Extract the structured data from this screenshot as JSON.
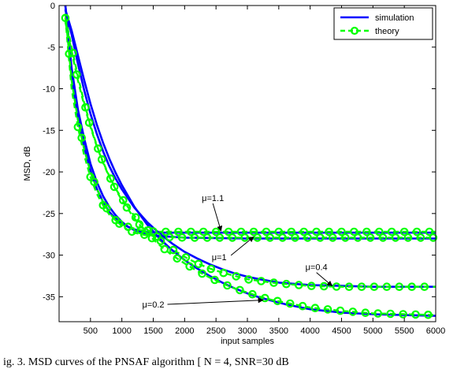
{
  "chart_data": {
    "type": "line",
    "xlabel": "input samples",
    "ylabel": "MSD, dB",
    "xlim": [
      0,
      6000
    ],
    "ylim": [
      -38,
      0
    ],
    "xticks": [
      500,
      1000,
      1500,
      2000,
      2500,
      3000,
      3500,
      4000,
      4500,
      5000,
      5500,
      6000
    ],
    "yticks": [
      0,
      -5,
      -10,
      -15,
      -20,
      -25,
      -30,
      -35
    ],
    "grid": false,
    "legend_position": "top-right",
    "legend": [
      {
        "label": "simulation",
        "color": "#0000ff",
        "style": "solid"
      },
      {
        "label": "theory",
        "color": "#00ff00",
        "style": "dashed",
        "marker": "circle"
      }
    ],
    "series": [
      {
        "mu": "1.1",
        "simulation": {
          "x": [
            100,
            200,
            300,
            400,
            500,
            600,
            700,
            800,
            900,
            1000,
            1100,
            1200,
            1300,
            1400,
            1600,
            2000,
            3000,
            4000,
            5000,
            6000
          ],
          "y": [
            0,
            -8.5,
            -13.5,
            -17,
            -19.8,
            -22,
            -23.6,
            -24.8,
            -25.6,
            -26.2,
            -26.6,
            -26.9,
            -27.1,
            -27.2,
            -27.3,
            -27.3,
            -27.3,
            -27.3,
            -27.3,
            -27.3
          ]
        },
        "theory": {
          "x": [
            100,
            200,
            300,
            400,
            500,
            600,
            700,
            800,
            900,
            1000,
            1100,
            1200,
            1300,
            1400,
            1600,
            2000,
            3000,
            4000,
            5000,
            6000
          ],
          "y": [
            -1.5,
            -10,
            -14.6,
            -18,
            -20.6,
            -22.6,
            -24,
            -25.1,
            -25.8,
            -26.3,
            -26.6,
            -26.8,
            -27,
            -27.1,
            -27.2,
            -27.2,
            -27.2,
            -27.2,
            -27.2,
            -27.2
          ]
        }
      },
      {
        "mu": "1",
        "simulation": {
          "x": [
            100,
            200,
            300,
            400,
            500,
            600,
            700,
            800,
            900,
            1000,
            1100,
            1200,
            1300,
            1400,
            1600,
            2000,
            3000,
            4000,
            5000,
            6000
          ],
          "y": [
            0,
            -7.5,
            -12.5,
            -16,
            -19,
            -21.2,
            -22.9,
            -24.2,
            -25.2,
            -26,
            -26.6,
            -27,
            -27.3,
            -27.5,
            -27.7,
            -27.9,
            -28,
            -28,
            -28,
            -28
          ]
        },
        "theory": {
          "x": [
            100,
            200,
            300,
            400,
            500,
            600,
            700,
            800,
            900,
            1000,
            1100,
            1200,
            1300,
            1400,
            1600,
            2000,
            3000,
            4000,
            5000,
            6000
          ],
          "y": [
            -1,
            -9,
            -13.8,
            -17.3,
            -20,
            -22,
            -23.6,
            -24.9,
            -25.8,
            -26.5,
            -27,
            -27.3,
            -27.5,
            -27.6,
            -27.8,
            -27.9,
            -27.9,
            -27.9,
            -27.9,
            -27.9
          ]
        }
      },
      {
        "mu": "0.4",
        "simulation": {
          "x": [
            100,
            200,
            300,
            400,
            500,
            600,
            700,
            800,
            900,
            1000,
            1200,
            1400,
            1600,
            1800,
            2000,
            2200,
            2400,
            2600,
            2800,
            3000,
            3200,
            3500,
            4000,
            4500,
            5000,
            5500,
            6000
          ],
          "y": [
            -0.5,
            -3.5,
            -7,
            -10.2,
            -13,
            -15.4,
            -17.5,
            -19.3,
            -20.8,
            -22.1,
            -24.3,
            -26,
            -27.4,
            -28.6,
            -29.6,
            -30.4,
            -31.1,
            -31.7,
            -32.2,
            -32.6,
            -32.9,
            -33.3,
            -33.6,
            -33.7,
            -33.8,
            -33.8,
            -33.8
          ]
        },
        "theory": {
          "x": [
            100,
            200,
            300,
            400,
            500,
            600,
            700,
            800,
            900,
            1000,
            1200,
            1400,
            1600,
            1800,
            2000,
            2200,
            2400,
            2600,
            2800,
            3000,
            3200,
            3500,
            4000,
            4500,
            5000,
            5500,
            6000
          ],
          "y": [
            -1.5,
            -5,
            -8.5,
            -11.7,
            -14.4,
            -16.8,
            -18.8,
            -20.5,
            -22,
            -23.2,
            -25.3,
            -26.9,
            -28.2,
            -29.3,
            -30.2,
            -31,
            -31.6,
            -32.1,
            -32.5,
            -32.9,
            -33.1,
            -33.4,
            -33.7,
            -33.8,
            -33.8,
            -33.8,
            -33.8
          ]
        }
      },
      {
        "mu": "0.2",
        "simulation": {
          "x": [
            100,
            200,
            300,
            400,
            500,
            600,
            700,
            800,
            900,
            1000,
            1200,
            1400,
            1600,
            1800,
            2000,
            2200,
            2400,
            2600,
            2800,
            3000,
            3200,
            3400,
            3600,
            3800,
            4000,
            4500,
            5000,
            5500,
            6000
          ],
          "y": [
            -0.5,
            -3,
            -6,
            -9,
            -11.8,
            -14.3,
            -16.5,
            -18.4,
            -20.1,
            -21.6,
            -24.2,
            -26.3,
            -28,
            -29.4,
            -30.6,
            -31.6,
            -32.5,
            -33.3,
            -34,
            -34.6,
            -35.1,
            -35.5,
            -35.9,
            -36.2,
            -36.5,
            -36.9,
            -37.1,
            -37.2,
            -37.3
          ]
        },
        "theory": {
          "x": [
            100,
            200,
            300,
            400,
            500,
            600,
            700,
            800,
            900,
            1000,
            1200,
            1400,
            1600,
            1800,
            2000,
            2200,
            2400,
            2600,
            2800,
            3000,
            3200,
            3400,
            3600,
            3800,
            4000,
            4500,
            5000,
            5500,
            6000
          ],
          "y": [
            -2,
            -5.5,
            -9,
            -12,
            -14.6,
            -16.9,
            -18.9,
            -20.6,
            -22.1,
            -23.4,
            -25.6,
            -27.4,
            -28.8,
            -30,
            -31,
            -31.9,
            -32.7,
            -33.4,
            -34,
            -34.5,
            -35,
            -35.4,
            -35.7,
            -36,
            -36.3,
            -36.7,
            -37,
            -37.1,
            -37.2
          ]
        }
      }
    ],
    "annotations": [
      {
        "text": "μ=1.1",
        "label_at": [
          2450,
          -23.5
        ],
        "arrow_to": [
          2580,
          -27.1
        ]
      },
      {
        "text": "μ=1",
        "label_at": [
          2550,
          -30.6
        ],
        "arrow_to": [
          3100,
          -27.8
        ]
      },
      {
        "text": "μ=0.4",
        "label_at": [
          4100,
          -31.8
        ],
        "arrow_to": [
          4350,
          -33.7
        ]
      },
      {
        "text": "μ=0.2",
        "label_at": [
          1500,
          -36.3
        ],
        "arrow_to": [
          3250,
          -35.4
        ]
      }
    ]
  },
  "caption": "ig. 3.  MSD curves of the PNSAF algorithm [ N = 4,  SNR=30 dB"
}
